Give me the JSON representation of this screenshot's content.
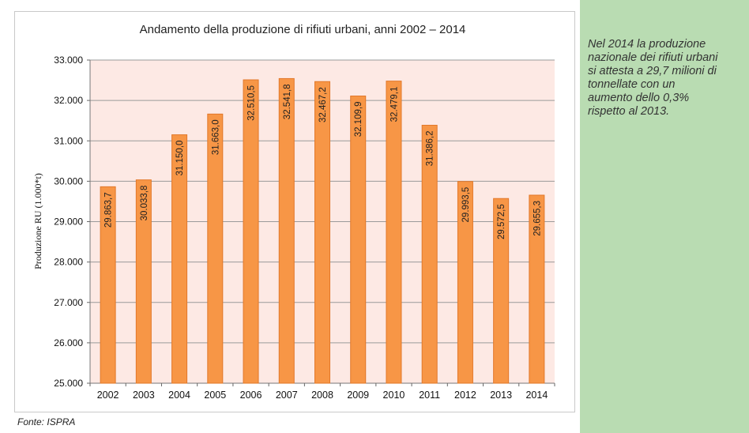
{
  "chart_data": {
    "type": "bar",
    "title": "Andamento della produzione di rifiuti urbani, anni 2002 – 2014",
    "xlabel": "",
    "ylabel": "Produzione RU (1.000*t)",
    "categories": [
      "2002",
      "2003",
      "2004",
      "2005",
      "2006",
      "2007",
      "2008",
      "2009",
      "2010",
      "2011",
      "2012",
      "2013",
      "2014"
    ],
    "values": [
      29863.7,
      30033.8,
      31150.0,
      31663.0,
      32510.5,
      32541.8,
      32467.2,
      32109.9,
      32479.1,
      31386.2,
      29993.5,
      29572.5,
      29655.3
    ],
    "value_labels": [
      "29.863,7",
      "30.033,8",
      "31.150,0",
      "31.663,0",
      "32.510,5",
      "32.541,8",
      "32.467,2",
      "32.109,9",
      "32.479,1",
      "31.386,2",
      "29.993,5",
      "29.572,5",
      "29.655,3"
    ],
    "ylim": [
      25000,
      33000
    ],
    "yticks": [
      25000,
      26000,
      27000,
      28000,
      29000,
      30000,
      31000,
      32000,
      33000
    ],
    "ytick_labels": [
      "25.000",
      "26.000",
      "27.000",
      "28.000",
      "29.000",
      "30.000",
      "31.000",
      "32.000",
      "33.000"
    ],
    "grid": true,
    "legend": "none",
    "colors": {
      "bar": "#f79646",
      "bar_stroke": "#e2782a",
      "plot_bg": "#fde9e4",
      "grid": "#9a9a9a"
    }
  },
  "source": "Fonte: ISPRA",
  "sidebar": {
    "text": "Nel 2014 la produzione nazionale dei rifiuti urbani si attesta a 29,7 milioni di tonnellate con un aumento dello 0,3% rispetto al 2013.",
    "background": "#b9dcb2"
  }
}
